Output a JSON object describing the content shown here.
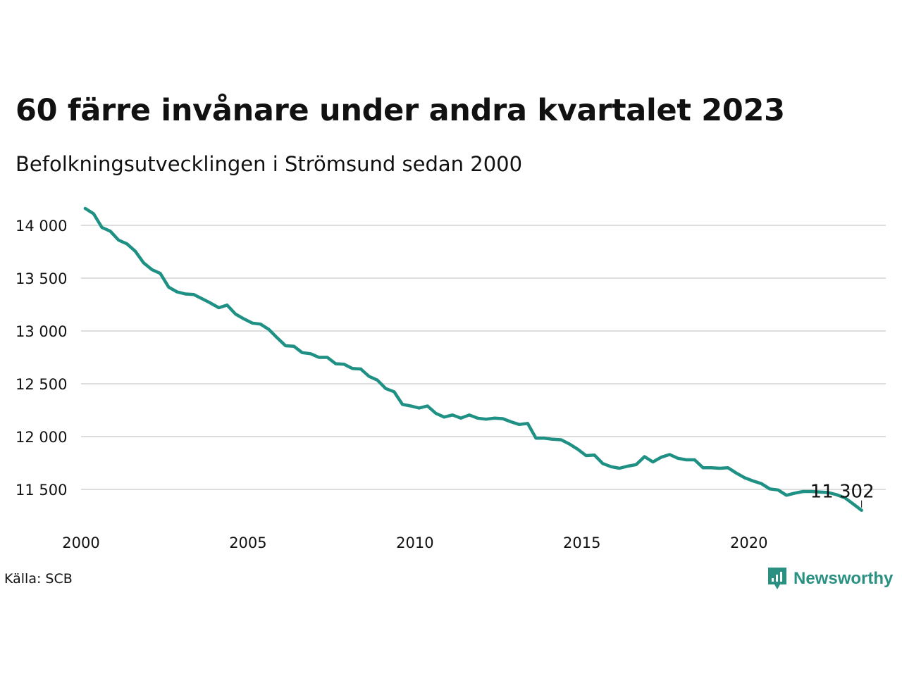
{
  "title": "60 färre invånare under andra kvartalet 2023",
  "subtitle": "Befolkningsutvecklingen i Strömsund sedan 2000",
  "source": "Källa: SCB",
  "logo": {
    "text": "Newsworthy",
    "icon": "newsworthy-logo-icon"
  },
  "colors": {
    "line": "#1f9084",
    "grid": "#dddddd",
    "text": "#111111",
    "brand": "#2a9182"
  },
  "chart_data": {
    "type": "line",
    "title": "60 färre invånare under andra kvartalet 2023",
    "subtitle": "Befolkningsutvecklingen i Strömsund sedan 2000",
    "xlabel": "",
    "ylabel": "",
    "xlim": [
      2000,
      2024.1
    ],
    "ylim": [
      11200,
      14200
    ],
    "grid": true,
    "x_ticks": [
      2000,
      2005,
      2010,
      2015,
      2020
    ],
    "x_tick_labels": [
      "2000",
      "2005",
      "2010",
      "2015",
      "2020"
    ],
    "y_ticks": [
      11500,
      12000,
      12500,
      13000,
      13500,
      14000
    ],
    "y_tick_labels": [
      "11 500",
      "12 000",
      "12 500",
      "13 000",
      "13 500",
      "14 000"
    ],
    "end_label": "11 302",
    "series": [
      {
        "x": [
          2000.125,
          2000.375,
          2000.625,
          2000.875,
          2001.125,
          2001.375,
          2001.625,
          2001.875,
          2002.125,
          2002.375,
          2002.625,
          2002.875,
          2003.125,
          2003.375,
          2003.625,
          2003.875,
          2004.125,
          2004.375,
          2004.625,
          2004.875,
          2005.125,
          2005.375,
          2005.625,
          2005.875,
          2006.125,
          2006.375,
          2006.625,
          2006.875,
          2007.125,
          2007.375,
          2007.625,
          2007.875,
          2008.125,
          2008.375,
          2008.625,
          2008.875,
          2009.125,
          2009.375,
          2009.625,
          2009.875,
          2010.125,
          2010.375,
          2010.625,
          2010.875,
          2011.125,
          2011.375,
          2011.625,
          2011.875,
          2012.125,
          2012.375,
          2012.625,
          2012.875,
          2013.125,
          2013.375,
          2013.625,
          2013.875,
          2014.125,
          2014.375,
          2014.625,
          2014.875,
          2015.125,
          2015.375,
          2015.625,
          2015.875,
          2016.125,
          2016.375,
          2016.625,
          2016.875,
          2017.125,
          2017.375,
          2017.625,
          2017.875,
          2018.125,
          2018.375,
          2018.625,
          2018.875,
          2019.125,
          2019.375,
          2019.625,
          2019.875,
          2020.125,
          2020.375,
          2020.625,
          2020.875,
          2021.125,
          2021.375,
          2021.625,
          2021.875,
          2022.125,
          2022.375,
          2022.625,
          2022.875,
          2023.125,
          2023.375
        ],
        "values": [
          14160,
          14110,
          13980,
          13945,
          13860,
          13825,
          13755,
          13645,
          13580,
          13545,
          13415,
          13370,
          13350,
          13345,
          13305,
          13265,
          13220,
          13245,
          13160,
          13115,
          13075,
          13065,
          13015,
          12935,
          12860,
          12855,
          12795,
          12785,
          12750,
          12750,
          12690,
          12685,
          12645,
          12640,
          12570,
          12535,
          12455,
          12425,
          12305,
          12290,
          12270,
          12290,
          12220,
          12185,
          12205,
          12175,
          12205,
          12175,
          12165,
          12175,
          12170,
          12140,
          12115,
          12125,
          11985,
          11985,
          11975,
          11970,
          11930,
          11880,
          11820,
          11825,
          11745,
          11715,
          11700,
          11720,
          11735,
          11810,
          11760,
          11805,
          11830,
          11795,
          11780,
          11780,
          11705,
          11705,
          11700,
          11705,
          11655,
          11610,
          11580,
          11555,
          11505,
          11495,
          11445,
          11465,
          11480,
          11480,
          11475,
          11470,
          11450,
          11420,
          11362,
          11302
        ]
      }
    ]
  }
}
